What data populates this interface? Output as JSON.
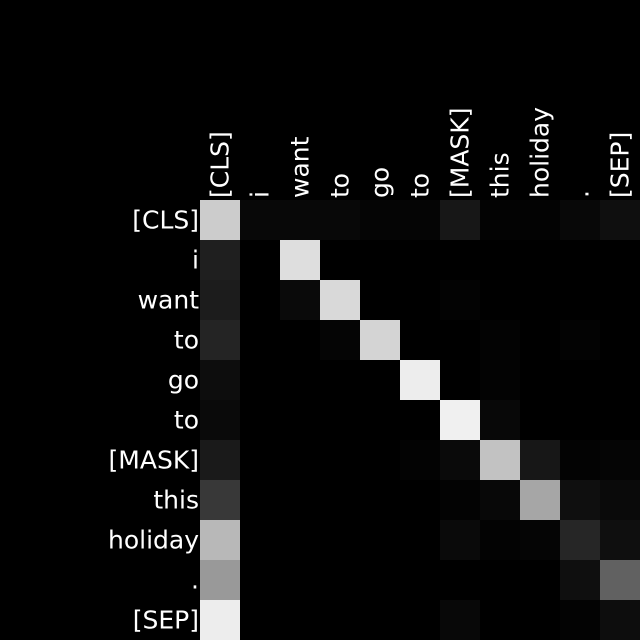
{
  "chart_data": {
    "type": "heatmap",
    "title": "",
    "xlabel": "",
    "ylabel": "",
    "x_labels": [
      "[CLS]",
      "i",
      "want",
      "to",
      "go",
      "to",
      "[MASK]",
      "this",
      "holiday",
      ".",
      "[SEP]"
    ],
    "y_labels": [
      "[CLS]",
      "i",
      "want",
      "to",
      "go",
      "to",
      "[MASK]",
      "this",
      "holiday",
      ".",
      "[SEP]"
    ],
    "value_range": [
      0,
      1
    ],
    "colormap": "gray",
    "background_color": "#000000",
    "label_color": "#ffffff",
    "x_tick_position": "top",
    "x_tick_rotation": 90,
    "grid": false,
    "legend": "none",
    "values": [
      [
        0.8,
        0.03,
        0.03,
        0.03,
        0.02,
        0.02,
        0.09,
        0.01,
        0.01,
        0.03,
        0.06
      ],
      [
        0.12,
        0.0,
        0.87,
        0.0,
        0.0,
        0.0,
        0.0,
        0.0,
        0.0,
        0.0,
        0.0
      ],
      [
        0.11,
        0.0,
        0.04,
        0.85,
        0.0,
        0.0,
        0.01,
        0.0,
        0.0,
        0.0,
        0.0
      ],
      [
        0.14,
        0.0,
        0.0,
        0.02,
        0.83,
        0.0,
        0.0,
        0.01,
        0.0,
        0.01,
        0.0
      ],
      [
        0.05,
        0.0,
        0.0,
        0.0,
        0.0,
        0.93,
        0.0,
        0.01,
        0.0,
        0.0,
        0.0
      ],
      [
        0.04,
        0.0,
        0.0,
        0.0,
        0.0,
        0.0,
        0.94,
        0.03,
        0.0,
        0.0,
        0.0
      ],
      [
        0.1,
        0.0,
        0.0,
        0.0,
        0.0,
        0.01,
        0.04,
        0.76,
        0.09,
        0.01,
        0.02
      ],
      [
        0.22,
        0.0,
        0.0,
        0.0,
        0.0,
        0.0,
        0.01,
        0.03,
        0.65,
        0.06,
        0.04
      ],
      [
        0.72,
        0.0,
        0.0,
        0.0,
        0.0,
        0.0,
        0.04,
        0.01,
        0.02,
        0.15,
        0.06
      ],
      [
        0.6,
        0.0,
        0.0,
        0.0,
        0.0,
        0.0,
        0.0,
        0.0,
        0.0,
        0.06,
        0.38
      ],
      [
        0.93,
        0.0,
        0.0,
        0.0,
        0.0,
        0.0,
        0.03,
        0.0,
        0.0,
        0.01,
        0.05
      ]
    ]
  }
}
